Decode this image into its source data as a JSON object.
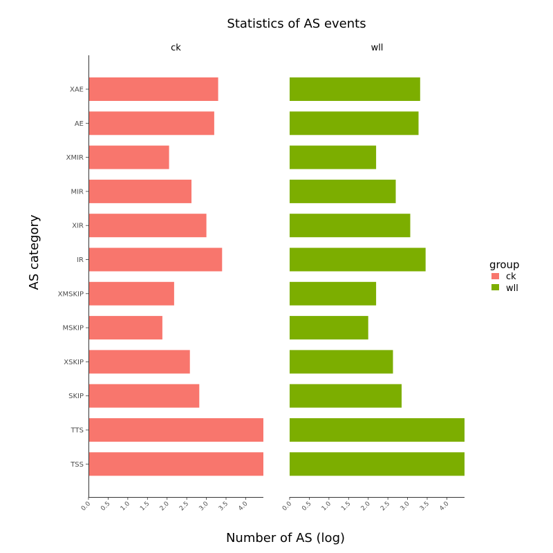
{
  "chart_data": {
    "type": "bar",
    "orientation": "horizontal",
    "title": "Statistics of AS events",
    "xlabel": "Number of AS (log)",
    "ylabel": "AS category",
    "xlim": [
      0,
      4.45
    ],
    "x_ticks": [
      "0.0",
      "0.5",
      "1.0",
      "1.5",
      "2.0",
      "2.5",
      "3.0",
      "3.5",
      "4.0"
    ],
    "categories": [
      "XAE",
      "AE",
      "XMIR",
      "MIR",
      "XIR",
      "IR",
      "XMSKIP",
      "MSKIP",
      "XSKIP",
      "SKIP",
      "TTS",
      "TSS"
    ],
    "facets": [
      "ck",
      "wll"
    ],
    "series": [
      {
        "name": "ck",
        "color": "#F8766D",
        "values": [
          3.3,
          3.2,
          2.05,
          2.62,
          3.0,
          3.4,
          2.18,
          1.88,
          2.58,
          2.82,
          4.45,
          4.45
        ]
      },
      {
        "name": "wll",
        "color": "#7CAE00",
        "values": [
          3.32,
          3.28,
          2.2,
          2.7,
          3.07,
          3.46,
          2.2,
          2.0,
          2.63,
          2.85,
          4.45,
          4.45
        ]
      }
    ],
    "legend": {
      "title": "group",
      "position": "right",
      "items": [
        "ck",
        "wll"
      ]
    },
    "grid": false
  }
}
